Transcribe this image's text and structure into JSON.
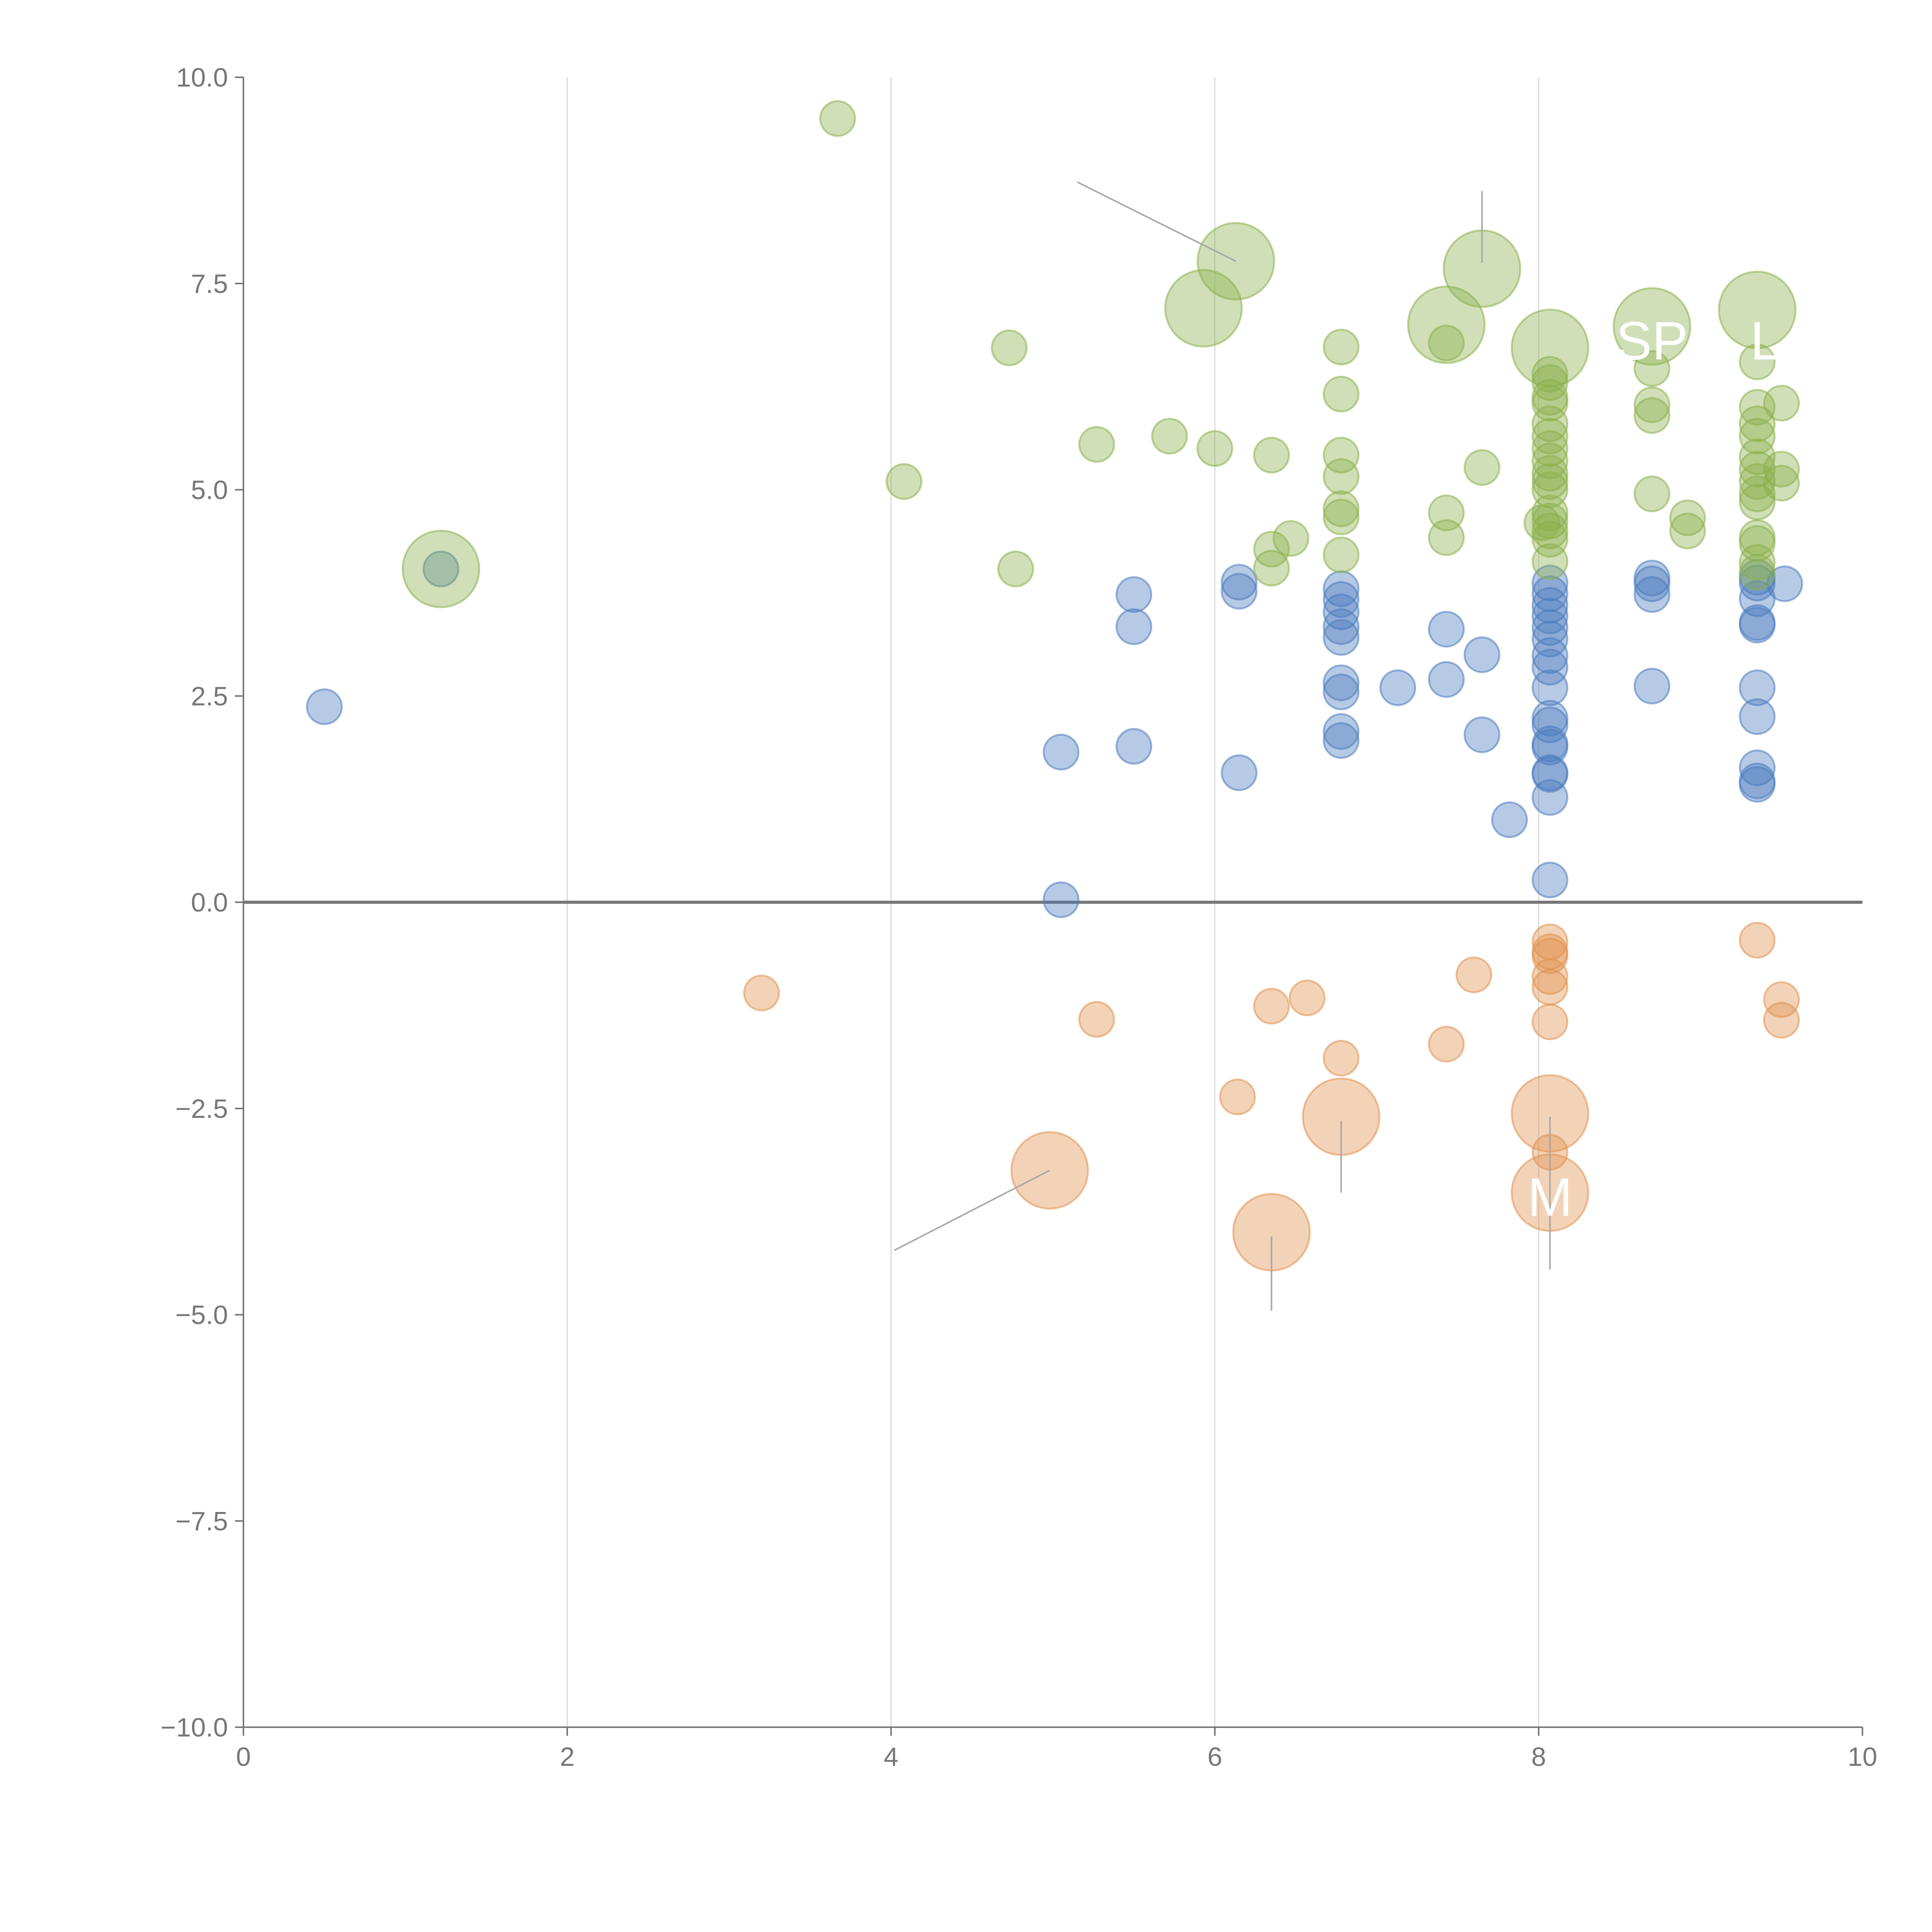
{
  "chart_data": {
    "type": "scatter",
    "title": "",
    "xlabel": "",
    "ylabel": "",
    "xlim": [
      0,
      10
    ],
    "ylim": [
      -10,
      10
    ],
    "x_ticks": [
      "0",
      "2",
      "4",
      "6",
      "8",
      "10"
    ],
    "y_ticks": [
      "10.0",
      "7.5",
      "5.0",
      "2.5",
      "0.0",
      "−2.5",
      "−5.0",
      "−7.5",
      "−10.0"
    ],
    "grid": "vertical",
    "zero_line": true,
    "legend": "none",
    "colors": {
      "blue": "#4a7bbf",
      "green": "#8ab04a",
      "orange": "#e0914e",
      "leader": "#a8a8a8",
      "axis": "#777777",
      "grid": "#d9d9d9"
    },
    "series": [
      {
        "name": "blue",
        "color": "#4a7bbf",
        "points": [
          {
            "x": 0.5,
            "y": 2.37,
            "r": 1
          },
          {
            "x": 1.22,
            "y": 4.04,
            "r": 1
          },
          {
            "x": 5.05,
            "y": 1.82,
            "r": 1
          },
          {
            "x": 5.05,
            "y": 0.03,
            "r": 1
          },
          {
            "x": 5.5,
            "y": 3.73,
            "r": 1
          },
          {
            "x": 5.5,
            "y": 3.34,
            "r": 1
          },
          {
            "x": 5.5,
            "y": 1.89,
            "r": 1
          },
          {
            "x": 6.15,
            "y": 3.88,
            "r": 1
          },
          {
            "x": 6.15,
            "y": 3.77,
            "r": 1
          },
          {
            "x": 6.15,
            "y": 1.57,
            "r": 1
          },
          {
            "x": 6.78,
            "y": 3.8,
            "r": 1
          },
          {
            "x": 6.78,
            "y": 3.67,
            "r": 1
          },
          {
            "x": 6.78,
            "y": 3.52,
            "r": 1
          },
          {
            "x": 6.78,
            "y": 3.34,
            "r": 1
          },
          {
            "x": 6.78,
            "y": 3.21,
            "r": 1
          },
          {
            "x": 6.78,
            "y": 2.66,
            "r": 1
          },
          {
            "x": 6.78,
            "y": 2.55,
            "r": 1
          },
          {
            "x": 6.78,
            "y": 2.07,
            "r": 1
          },
          {
            "x": 6.78,
            "y": 1.96,
            "r": 1
          },
          {
            "x": 7.13,
            "y": 2.6,
            "r": 1
          },
          {
            "x": 7.43,
            "y": 3.31,
            "r": 1
          },
          {
            "x": 7.43,
            "y": 2.7,
            "r": 1
          },
          {
            "x": 7.65,
            "y": 3.0,
            "r": 1
          },
          {
            "x": 7.65,
            "y": 2.03,
            "r": 1
          },
          {
            "x": 7.82,
            "y": 1.0,
            "r": 1
          },
          {
            "x": 8.07,
            "y": 3.87,
            "r": 1
          },
          {
            "x": 8.07,
            "y": 3.74,
            "r": 1
          },
          {
            "x": 8.07,
            "y": 3.6,
            "r": 1
          },
          {
            "x": 8.07,
            "y": 3.47,
            "r": 1
          },
          {
            "x": 8.07,
            "y": 3.33,
            "r": 1
          },
          {
            "x": 8.07,
            "y": 3.19,
            "r": 1
          },
          {
            "x": 8.07,
            "y": 2.99,
            "r": 1
          },
          {
            "x": 8.07,
            "y": 2.85,
            "r": 1
          },
          {
            "x": 8.07,
            "y": 2.6,
            "r": 1
          },
          {
            "x": 8.07,
            "y": 2.23,
            "r": 1
          },
          {
            "x": 8.07,
            "y": 2.15,
            "r": 1
          },
          {
            "x": 8.07,
            "y": 1.92,
            "r": 1
          },
          {
            "x": 8.07,
            "y": 1.88,
            "r": 1
          },
          {
            "x": 8.07,
            "y": 1.57,
            "r": 1
          },
          {
            "x": 8.07,
            "y": 1.55,
            "r": 1
          },
          {
            "x": 8.07,
            "y": 1.27,
            "r": 1
          },
          {
            "x": 8.07,
            "y": 0.27,
            "r": 1
          },
          {
            "x": 8.7,
            "y": 3.93,
            "r": 1
          },
          {
            "x": 8.7,
            "y": 3.86,
            "r": 1
          },
          {
            "x": 8.7,
            "y": 3.73,
            "r": 1
          },
          {
            "x": 8.7,
            "y": 2.62,
            "r": 1
          },
          {
            "x": 9.35,
            "y": 3.94,
            "r": 1
          },
          {
            "x": 9.35,
            "y": 3.87,
            "r": 1
          },
          {
            "x": 9.35,
            "y": 3.68,
            "r": 1
          },
          {
            "x": 9.35,
            "y": 3.39,
            "r": 1
          },
          {
            "x": 9.35,
            "y": 3.36,
            "r": 1
          },
          {
            "x": 9.35,
            "y": 2.6,
            "r": 1
          },
          {
            "x": 9.35,
            "y": 2.25,
            "r": 1
          },
          {
            "x": 9.35,
            "y": 1.63,
            "r": 1
          },
          {
            "x": 9.35,
            "y": 1.47,
            "r": 1
          },
          {
            "x": 9.35,
            "y": 1.43,
            "r": 1
          },
          {
            "x": 9.52,
            "y": 3.86,
            "r": 1
          }
        ]
      },
      {
        "name": "green",
        "color": "#8ab04a",
        "points": [
          {
            "x": 1.22,
            "y": 4.04,
            "r": 2.2
          },
          {
            "x": 3.67,
            "y": 9.5,
            "r": 1
          },
          {
            "x": 4.08,
            "y": 5.1,
            "r": 1
          },
          {
            "x": 4.73,
            "y": 6.72,
            "r": 1
          },
          {
            "x": 4.77,
            "y": 4.04,
            "r": 1
          },
          {
            "x": 5.27,
            "y": 5.55,
            "r": 1
          },
          {
            "x": 5.72,
            "y": 5.65,
            "r": 1
          },
          {
            "x": 5.93,
            "y": 7.2,
            "r": 2.2
          },
          {
            "x": 6.0,
            "y": 5.5,
            "r": 1
          },
          {
            "x": 6.13,
            "y": 7.77,
            "r": 2.2
          },
          {
            "x": 6.35,
            "y": 5.42,
            "r": 1
          },
          {
            "x": 6.35,
            "y": 4.28,
            "r": 1
          },
          {
            "x": 6.35,
            "y": 4.05,
            "r": 1
          },
          {
            "x": 6.47,
            "y": 4.41,
            "r": 1
          },
          {
            "x": 6.78,
            "y": 6.73,
            "r": 1
          },
          {
            "x": 6.78,
            "y": 6.16,
            "r": 1
          },
          {
            "x": 6.78,
            "y": 5.42,
            "r": 1
          },
          {
            "x": 6.78,
            "y": 5.16,
            "r": 1
          },
          {
            "x": 6.78,
            "y": 4.77,
            "r": 1
          },
          {
            "x": 6.78,
            "y": 4.67,
            "r": 1
          },
          {
            "x": 6.78,
            "y": 4.21,
            "r": 1
          },
          {
            "x": 7.43,
            "y": 7.0,
            "r": 2.2
          },
          {
            "x": 7.43,
            "y": 6.78,
            "r": 1
          },
          {
            "x": 7.43,
            "y": 4.72,
            "r": 1
          },
          {
            "x": 7.43,
            "y": 4.42,
            "r": 1
          },
          {
            "x": 7.65,
            "y": 7.68,
            "r": 2.2
          },
          {
            "x": 7.65,
            "y": 5.27,
            "r": 1
          },
          {
            "x": 8.07,
            "y": 6.72,
            "r": 2.2
          },
          {
            "x": 8.07,
            "y": 6.4,
            "r": 1
          },
          {
            "x": 8.07,
            "y": 6.3,
            "r": 1
          },
          {
            "x": 8.07,
            "y": 6.12,
            "r": 1
          },
          {
            "x": 8.07,
            "y": 6.05,
            "r": 1
          },
          {
            "x": 8.07,
            "y": 5.8,
            "r": 1
          },
          {
            "x": 8.07,
            "y": 5.65,
            "r": 1
          },
          {
            "x": 8.07,
            "y": 5.5,
            "r": 1
          },
          {
            "x": 8.07,
            "y": 5.35,
            "r": 1
          },
          {
            "x": 8.07,
            "y": 5.2,
            "r": 1
          },
          {
            "x": 8.07,
            "y": 5.1,
            "r": 1
          },
          {
            "x": 8.07,
            "y": 5.0,
            "r": 1
          },
          {
            "x": 8.07,
            "y": 4.72,
            "r": 1
          },
          {
            "x": 8.07,
            "y": 4.62,
            "r": 1
          },
          {
            "x": 8.07,
            "y": 4.5,
            "r": 1
          },
          {
            "x": 8.07,
            "y": 4.4,
            "r": 1
          },
          {
            "x": 8.07,
            "y": 4.13,
            "r": 1
          },
          {
            "x": 8.02,
            "y": 4.6,
            "r": 1
          },
          {
            "x": 8.7,
            "y": 6.98,
            "r": 2.2
          },
          {
            "x": 8.7,
            "y": 6.47,
            "r": 1
          },
          {
            "x": 8.7,
            "y": 6.03,
            "r": 1
          },
          {
            "x": 8.7,
            "y": 5.9,
            "r": 1
          },
          {
            "x": 8.7,
            "y": 4.95,
            "r": 1
          },
          {
            "x": 8.92,
            "y": 4.66,
            "r": 1
          },
          {
            "x": 8.92,
            "y": 4.5,
            "r": 1
          },
          {
            "x": 9.35,
            "y": 7.18,
            "r": 2.2
          },
          {
            "x": 9.35,
            "y": 6.55,
            "r": 1
          },
          {
            "x": 9.35,
            "y": 6.0,
            "r": 1
          },
          {
            "x": 9.35,
            "y": 5.8,
            "r": 1
          },
          {
            "x": 9.35,
            "y": 5.65,
            "r": 1
          },
          {
            "x": 9.35,
            "y": 5.4,
            "r": 1
          },
          {
            "x": 9.35,
            "y": 5.25,
            "r": 1
          },
          {
            "x": 9.35,
            "y": 5.1,
            "r": 1
          },
          {
            "x": 9.35,
            "y": 4.95,
            "r": 1
          },
          {
            "x": 9.35,
            "y": 4.85,
            "r": 1
          },
          {
            "x": 9.35,
            "y": 4.42,
            "r": 1
          },
          {
            "x": 9.35,
            "y": 4.35,
            "r": 1
          },
          {
            "x": 9.35,
            "y": 4.12,
            "r": 1
          },
          {
            "x": 9.35,
            "y": 4.0,
            "r": 1
          },
          {
            "x": 9.5,
            "y": 6.05,
            "r": 1
          },
          {
            "x": 9.5,
            "y": 5.25,
            "r": 1
          },
          {
            "x": 9.5,
            "y": 5.08,
            "r": 1
          }
        ]
      },
      {
        "name": "orange",
        "color": "#e0914e",
        "points": [
          {
            "x": 3.2,
            "y": -1.1,
            "r": 1
          },
          {
            "x": 4.98,
            "y": -3.25,
            "r": 2.2
          },
          {
            "x": 5.27,
            "y": -1.42,
            "r": 1
          },
          {
            "x": 6.14,
            "y": -2.36,
            "r": 1
          },
          {
            "x": 6.35,
            "y": -1.26,
            "r": 1
          },
          {
            "x": 6.35,
            "y": -4.0,
            "r": 2.2
          },
          {
            "x": 6.57,
            "y": -1.16,
            "r": 1
          },
          {
            "x": 6.78,
            "y": -1.89,
            "r": 1
          },
          {
            "x": 6.78,
            "y": -2.6,
            "r": 2.2
          },
          {
            "x": 7.43,
            "y": -1.72,
            "r": 1
          },
          {
            "x": 7.6,
            "y": -0.88,
            "r": 1
          },
          {
            "x": 8.07,
            "y": -0.48,
            "r": 1
          },
          {
            "x": 8.07,
            "y": -0.6,
            "r": 1
          },
          {
            "x": 8.07,
            "y": -0.65,
            "r": 1
          },
          {
            "x": 8.07,
            "y": -0.9,
            "r": 1
          },
          {
            "x": 8.07,
            "y": -1.03,
            "r": 1
          },
          {
            "x": 8.07,
            "y": -1.45,
            "r": 1
          },
          {
            "x": 8.07,
            "y": -2.56,
            "r": 2.2
          },
          {
            "x": 8.07,
            "y": -3.03,
            "r": 1
          },
          {
            "x": 8.07,
            "y": -3.52,
            "r": 2.2
          },
          {
            "x": 9.35,
            "y": -0.46,
            "r": 1
          },
          {
            "x": 9.5,
            "y": -1.18,
            "r": 1
          },
          {
            "x": 9.5,
            "y": -1.43,
            "r": 1
          }
        ]
      }
    ],
    "leader_lines": [
      {
        "x1": 5.15,
        "y1": 8.73,
        "x2": 6.13,
        "y2": 7.77
      },
      {
        "x1": 7.65,
        "y1": 8.62,
        "x2": 7.65,
        "y2": 7.75
      },
      {
        "x1": 4.02,
        "y1": -4.22,
        "x2": 4.98,
        "y2": -3.25
      },
      {
        "x1": 6.78,
        "y1": -2.65,
        "x2": 6.78,
        "y2": -3.52
      },
      {
        "x1": 6.35,
        "y1": -4.05,
        "x2": 6.35,
        "y2": -4.95
      },
      {
        "x1": 8.07,
        "y1": -2.6,
        "x2": 8.07,
        "y2": -4.45
      }
    ],
    "bubble_labels": [
      {
        "text": "SP",
        "x": 8.7,
        "y": 6.58
      },
      {
        "text": "L",
        "x": 9.4,
        "y": 6.58
      },
      {
        "text": "M",
        "x": 8.07,
        "y": -3.8
      }
    ]
  }
}
